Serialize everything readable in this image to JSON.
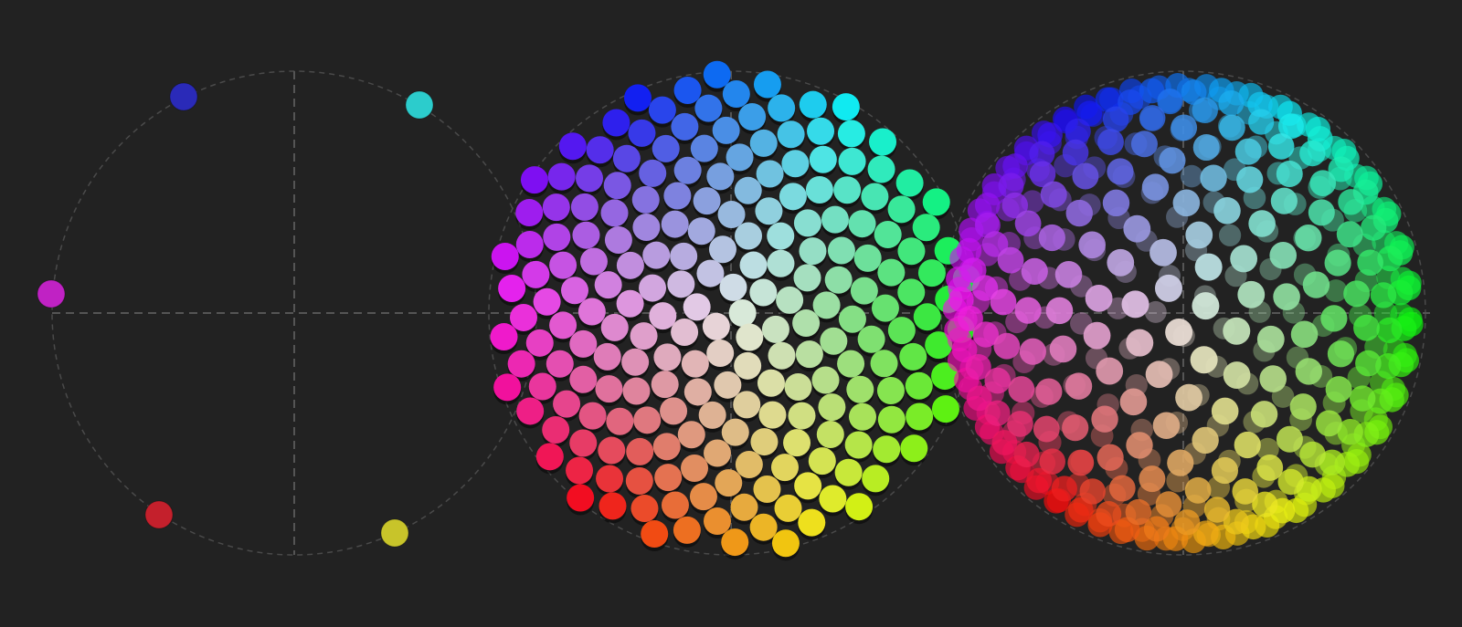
{
  "anchor_colors": [
    "#2a2ab8",
    "#2ccccc",
    "#c022c4",
    "#c4202c",
    "#c8c42a"
  ]
}
